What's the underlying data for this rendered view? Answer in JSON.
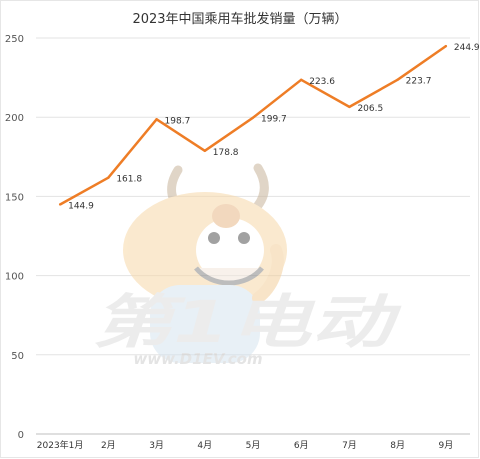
{
  "chart_data": {
    "type": "line",
    "title": "2023年中国乘用车批发销量（万辆）",
    "categories": [
      "2023年1月",
      "2月",
      "3月",
      "4月",
      "5月",
      "6月",
      "7月",
      "8月",
      "9月"
    ],
    "series": [
      {
        "values": [
          144.9,
          161.8,
          198.7,
          178.8,
          199.7,
          223.6,
          206.5,
          223.7,
          244.9
        ]
      }
    ],
    "yticks": [
      "0",
      "50",
      "100",
      "150",
      "200",
      "250"
    ],
    "data_labels": [
      "144.9",
      "161.8",
      "198.7",
      "178.8",
      "199.7",
      "223.6",
      "206.5",
      "223.7",
      "244.9"
    ],
    "ylim": [
      0,
      250
    ],
    "grid": true,
    "line_color": "#ee7d26"
  },
  "watermark": {
    "logo_text": "第1电动",
    "url": "www.D1EV.com"
  }
}
